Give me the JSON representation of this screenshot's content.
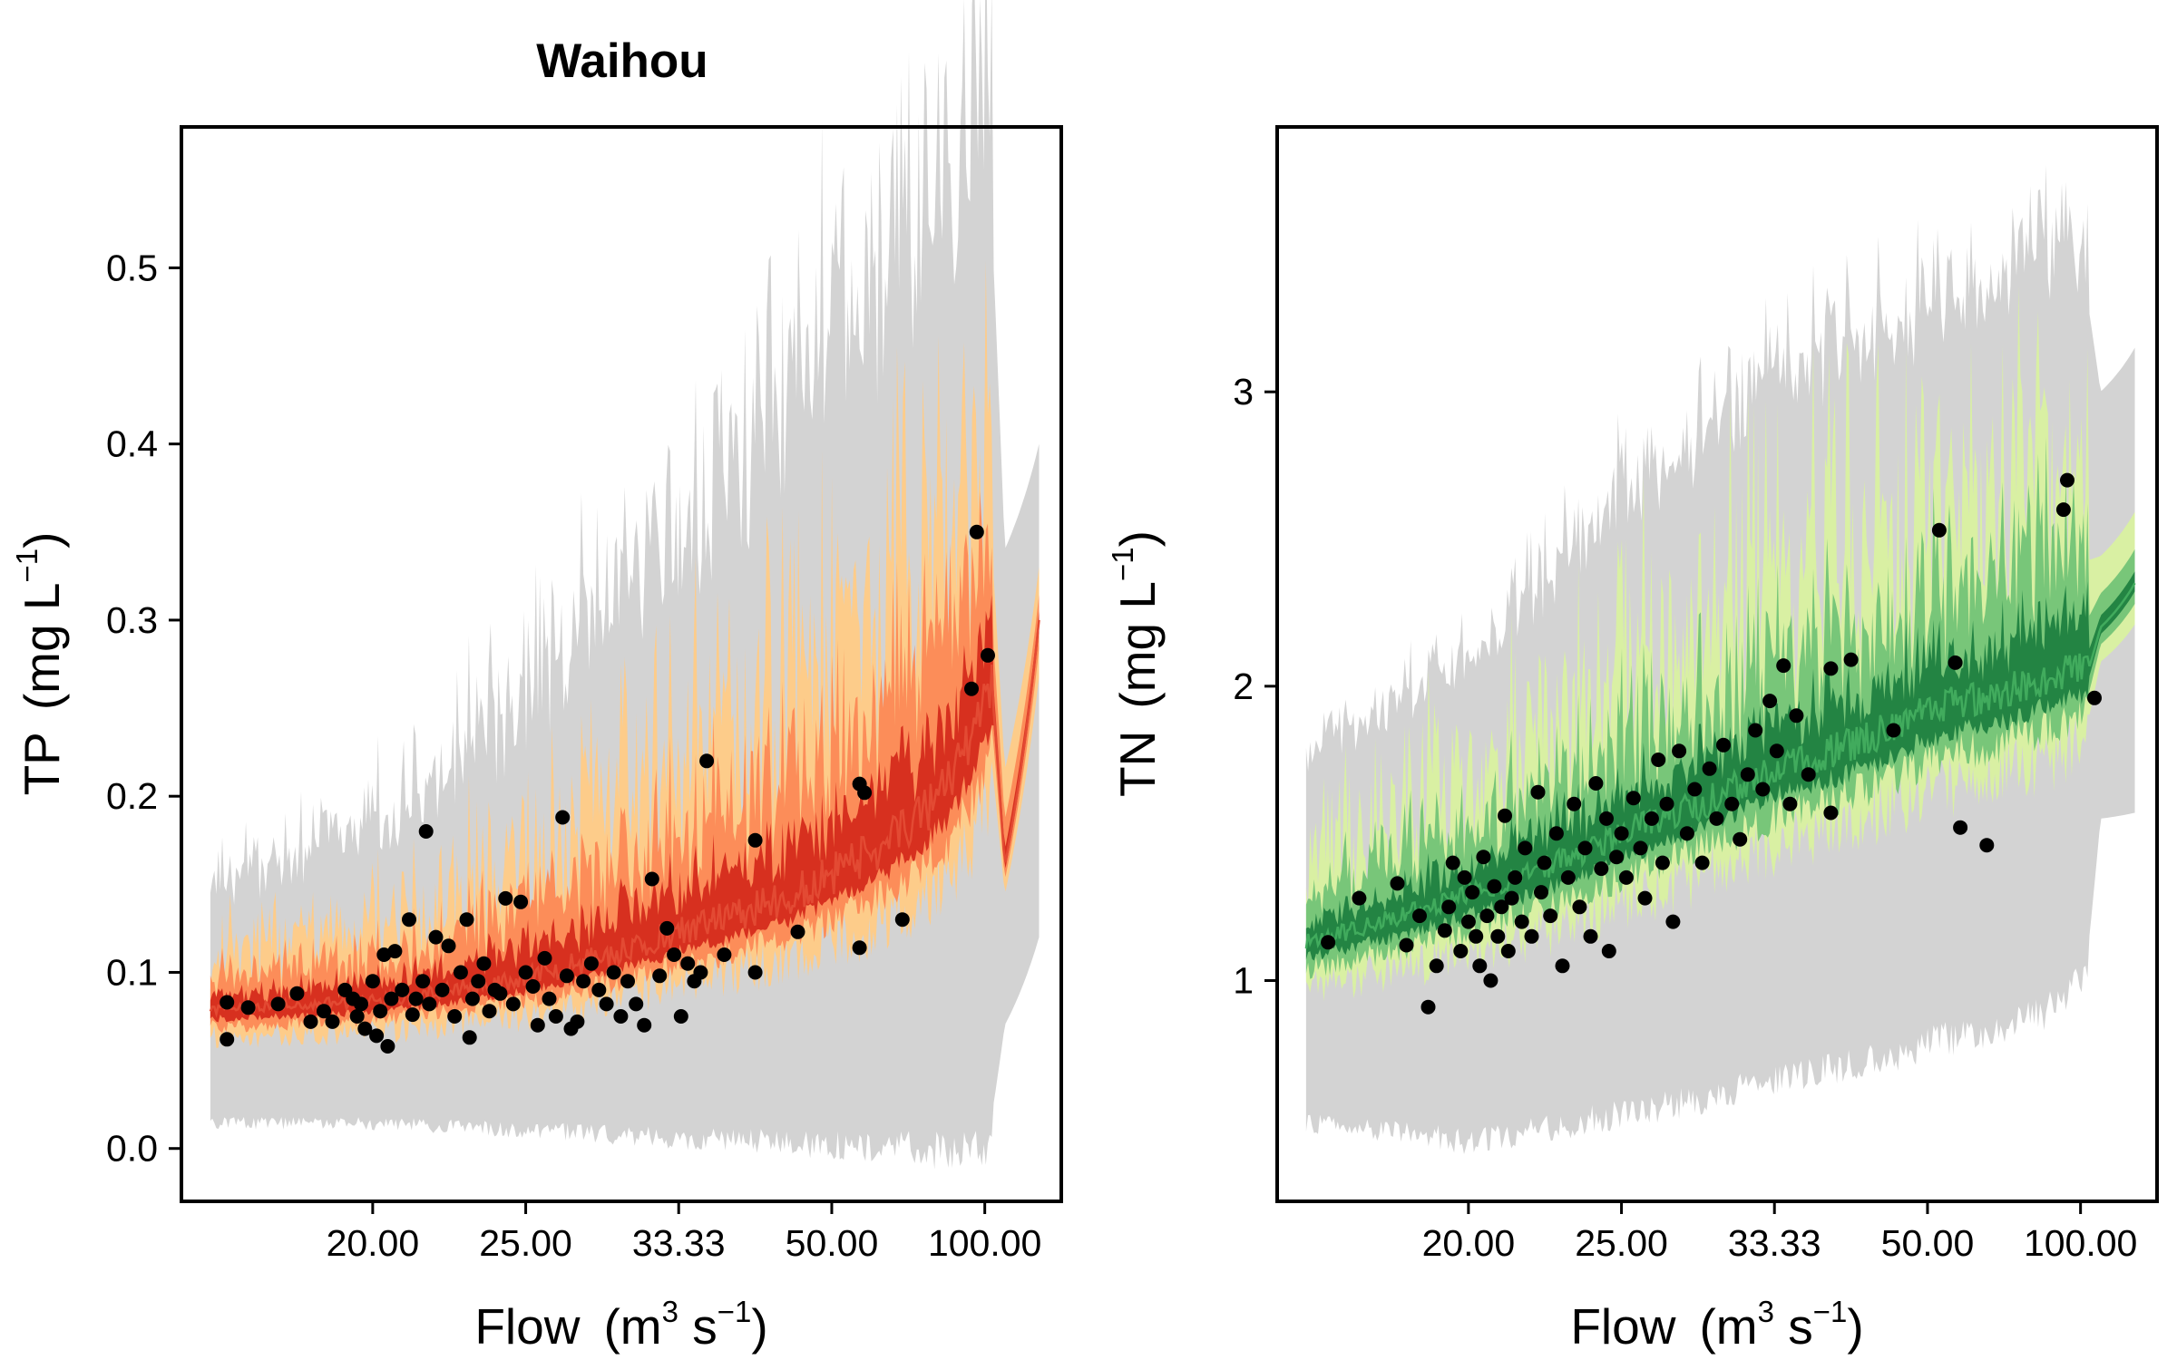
{
  "figure_title": "Waihou",
  "colors": {
    "grey_band": "#d3d3d3",
    "tp_outer": "#fdcc8a",
    "tp_mid": "#fc8d59",
    "tp_inner": "#d7301f",
    "tp_line": "#e34a33",
    "tn_outer": "#d9f0a3",
    "tn_mid": "#78c679",
    "tn_inner": "#238443",
    "tn_line": "#41ab5d",
    "points": "#000000"
  },
  "chart_data": [
    {
      "type": "scatter",
      "panel": "TP",
      "title": "Waihou",
      "xlabel": {
        "main": "Flow",
        "unit_base": "m",
        "unit_sup1": "3",
        "unit_mid": " s",
        "unit_sup2": "−1"
      },
      "ylabel": {
        "main": "TP",
        "unit_base": "mg L",
        "unit_sup": "−1"
      },
      "x_tick_labels": [
        "20.00",
        "25.00",
        "33.33",
        "50.00",
        "100.00"
      ],
      "x_tick_values": [
        20,
        25,
        33.33,
        50,
        100
      ],
      "x_axis_transform": "reciprocal",
      "xlim": [
        16,
        200
      ],
      "ylim": [
        -0.03,
        0.58
      ],
      "y_ticks": [
        0.0,
        0.1,
        0.2,
        0.3,
        0.4,
        0.5
      ],
      "y_tick_labels": [
        "0.0",
        "0.1",
        "0.2",
        "0.3",
        "0.4",
        "0.5"
      ],
      "grid": false,
      "legend": "none",
      "band_anchors": {
        "x": [
          16.5,
          20,
          25,
          33.33,
          50,
          80,
          105,
          115,
          155
        ],
        "median": [
          0.078,
          0.082,
          0.095,
          0.12,
          0.15,
          0.2,
          0.26,
          0.16,
          0.3
        ],
        "grey_low": [
          0.018,
          0.018,
          0.015,
          0.012,
          0.01,
          0.01,
          0.02,
          0.07,
          0.12
        ],
        "grey_high": [
          0.135,
          0.16,
          0.22,
          0.3,
          0.4,
          0.48,
          0.52,
          0.34,
          0.4
        ]
      },
      "points": [
        [
          16.8,
          0.083
        ],
        [
          16.8,
          0.062
        ],
        [
          17.2,
          0.08
        ],
        [
          17.8,
          0.082
        ],
        [
          18.2,
          0.088
        ],
        [
          18.5,
          0.072
        ],
        [
          18.8,
          0.078
        ],
        [
          19.0,
          0.072
        ],
        [
          19.3,
          0.09
        ],
        [
          19.5,
          0.085
        ],
        [
          19.6,
          0.075
        ],
        [
          19.7,
          0.082
        ],
        [
          19.8,
          0.068
        ],
        [
          20.0,
          0.095
        ],
        [
          20.1,
          0.064
        ],
        [
          20.2,
          0.078
        ],
        [
          20.3,
          0.11
        ],
        [
          20.4,
          0.058
        ],
        [
          20.5,
          0.085
        ],
        [
          20.6,
          0.112
        ],
        [
          20.8,
          0.09
        ],
        [
          21.0,
          0.13
        ],
        [
          21.1,
          0.076
        ],
        [
          21.2,
          0.085
        ],
        [
          21.4,
          0.095
        ],
        [
          21.5,
          0.18
        ],
        [
          21.6,
          0.082
        ],
        [
          21.8,
          0.12
        ],
        [
          22.0,
          0.09
        ],
        [
          22.2,
          0.115
        ],
        [
          22.4,
          0.075
        ],
        [
          22.6,
          0.1
        ],
        [
          22.8,
          0.13
        ],
        [
          22.9,
          0.063
        ],
        [
          23.0,
          0.085
        ],
        [
          23.2,
          0.095
        ],
        [
          23.4,
          0.105
        ],
        [
          23.6,
          0.078
        ],
        [
          23.8,
          0.09
        ],
        [
          24.0,
          0.088
        ],
        [
          24.2,
          0.142
        ],
        [
          24.5,
          0.082
        ],
        [
          24.8,
          0.14
        ],
        [
          25.0,
          0.1
        ],
        [
          25.3,
          0.092
        ],
        [
          25.5,
          0.07
        ],
        [
          25.8,
          0.108
        ],
        [
          26.0,
          0.085
        ],
        [
          26.3,
          0.075
        ],
        [
          26.6,
          0.188
        ],
        [
          26.8,
          0.098
        ],
        [
          27.0,
          0.068
        ],
        [
          27.3,
          0.072
        ],
        [
          27.6,
          0.095
        ],
        [
          28.0,
          0.105
        ],
        [
          28.4,
          0.09
        ],
        [
          28.8,
          0.082
        ],
        [
          29.2,
          0.1
        ],
        [
          29.6,
          0.075
        ],
        [
          30.0,
          0.095
        ],
        [
          30.5,
          0.082
        ],
        [
          31.0,
          0.07
        ],
        [
          31.5,
          0.153
        ],
        [
          32.0,
          0.098
        ],
        [
          32.5,
          0.125
        ],
        [
          33.0,
          0.11
        ],
        [
          33.5,
          0.075
        ],
        [
          34.0,
          0.105
        ],
        [
          34.5,
          0.095
        ],
        [
          35.0,
          0.1
        ],
        [
          35.5,
          0.22
        ],
        [
          37.0,
          0.11
        ],
        [
          40.0,
          0.175
        ],
        [
          40.0,
          0.1
        ],
        [
          45.0,
          0.123
        ],
        [
          55.0,
          0.207
        ],
        [
          55.0,
          0.114
        ],
        [
          56.0,
          0.202
        ],
        [
          65.0,
          0.13
        ],
        [
          92.0,
          0.261
        ],
        [
          95.0,
          0.35
        ],
        [
          102.0,
          0.28
        ]
      ]
    },
    {
      "type": "scatter",
      "panel": "TN",
      "title": "",
      "xlabel": {
        "main": "Flow",
        "unit_base": "m",
        "unit_sup1": "3",
        "unit_mid": " s",
        "unit_sup2": "−1"
      },
      "ylabel": {
        "main": "TN",
        "unit_base": "mg L",
        "unit_sup": "−1"
      },
      "x_tick_labels": [
        "20.00",
        "25.00",
        "33.33",
        "50.00",
        "100.00"
      ],
      "x_tick_values": [
        20,
        25,
        33.33,
        50,
        100
      ],
      "x_axis_transform": "reciprocal",
      "xlim": [
        16,
        200
      ],
      "ylim": [
        0.25,
        3.9
      ],
      "y_ticks": [
        1,
        2,
        3
      ],
      "y_tick_labels": [
        "1",
        "2",
        "3"
      ],
      "grid": false,
      "legend": "none",
      "band_anchors": {
        "x": [
          16.5,
          20,
          25,
          33.33,
          50,
          80,
          105,
          115,
          155
        ],
        "median": [
          1.12,
          1.28,
          1.48,
          1.7,
          1.9,
          2.0,
          2.05,
          2.2,
          2.35
        ],
        "grey_low": [
          0.55,
          0.5,
          0.6,
          0.72,
          0.85,
          0.95,
          1.1,
          1.55,
          1.57
        ],
        "grey_high": [
          1.7,
          2.0,
          2.5,
          2.9,
          3.1,
          3.3,
          3.3,
          3.0,
          3.15
        ]
      },
      "points": [
        [
          16.9,
          1.13
        ],
        [
          17.5,
          1.28
        ],
        [
          18.3,
          1.33
        ],
        [
          18.5,
          1.12
        ],
        [
          18.8,
          1.22
        ],
        [
          19.0,
          0.91
        ],
        [
          19.2,
          1.05
        ],
        [
          19.4,
          1.17
        ],
        [
          19.5,
          1.25
        ],
        [
          19.6,
          1.4
        ],
        [
          19.8,
          1.1
        ],
        [
          19.9,
          1.35
        ],
        [
          20.0,
          1.2
        ],
        [
          20.1,
          1.3
        ],
        [
          20.2,
          1.15
        ],
        [
          20.3,
          1.05
        ],
        [
          20.4,
          1.42
        ],
        [
          20.5,
          1.22
        ],
        [
          20.6,
          1.0
        ],
        [
          20.7,
          1.32
        ],
        [
          20.8,
          1.15
        ],
        [
          20.9,
          1.25
        ],
        [
          21.0,
          1.56
        ],
        [
          21.1,
          1.1
        ],
        [
          21.2,
          1.28
        ],
        [
          21.3,
          1.35
        ],
        [
          21.5,
          1.2
        ],
        [
          21.6,
          1.45
        ],
        [
          21.8,
          1.15
        ],
        [
          22.0,
          1.64
        ],
        [
          22.1,
          1.3
        ],
        [
          22.2,
          1.4
        ],
        [
          22.4,
          1.22
        ],
        [
          22.6,
          1.5
        ],
        [
          22.8,
          1.05
        ],
        [
          23.0,
          1.35
        ],
        [
          23.2,
          1.6
        ],
        [
          23.4,
          1.25
        ],
        [
          23.6,
          1.45
        ],
        [
          23.8,
          1.15
        ],
        [
          24.0,
          1.67
        ],
        [
          24.2,
          1.38
        ],
        [
          24.4,
          1.55
        ],
        [
          24.5,
          1.1
        ],
        [
          24.8,
          1.42
        ],
        [
          25.0,
          1.5
        ],
        [
          25.2,
          1.35
        ],
        [
          25.5,
          1.62
        ],
        [
          25.8,
          1.45
        ],
        [
          26.0,
          1.28
        ],
        [
          26.3,
          1.55
        ],
        [
          26.6,
          1.75
        ],
        [
          26.8,
          1.4
        ],
        [
          27.0,
          1.6
        ],
        [
          27.3,
          1.2
        ],
        [
          27.6,
          1.78
        ],
        [
          28.0,
          1.5
        ],
        [
          28.4,
          1.65
        ],
        [
          28.8,
          1.4
        ],
        [
          29.2,
          1.72
        ],
        [
          29.6,
          1.55
        ],
        [
          30.0,
          1.8
        ],
        [
          30.5,
          1.6
        ],
        [
          31.0,
          1.48
        ],
        [
          31.5,
          1.7
        ],
        [
          32.0,
          1.85
        ],
        [
          32.5,
          1.65
        ],
        [
          33.0,
          1.95
        ],
        [
          33.5,
          1.78
        ],
        [
          34.0,
          2.07
        ],
        [
          34.5,
          1.6
        ],
        [
          35.0,
          1.9
        ],
        [
          36.0,
          1.7
        ],
        [
          38.0,
          2.06
        ],
        [
          38.0,
          1.57
        ],
        [
          40.0,
          2.09
        ],
        [
          45.0,
          1.85
        ],
        [
          52.0,
          2.53
        ],
        [
          55.0,
          2.08
        ],
        [
          56.0,
          1.52
        ],
        [
          62.0,
          1.46
        ],
        [
          90.0,
          2.6
        ],
        [
          92.0,
          2.7
        ],
        [
          110.0,
          1.96
        ]
      ]
    }
  ]
}
